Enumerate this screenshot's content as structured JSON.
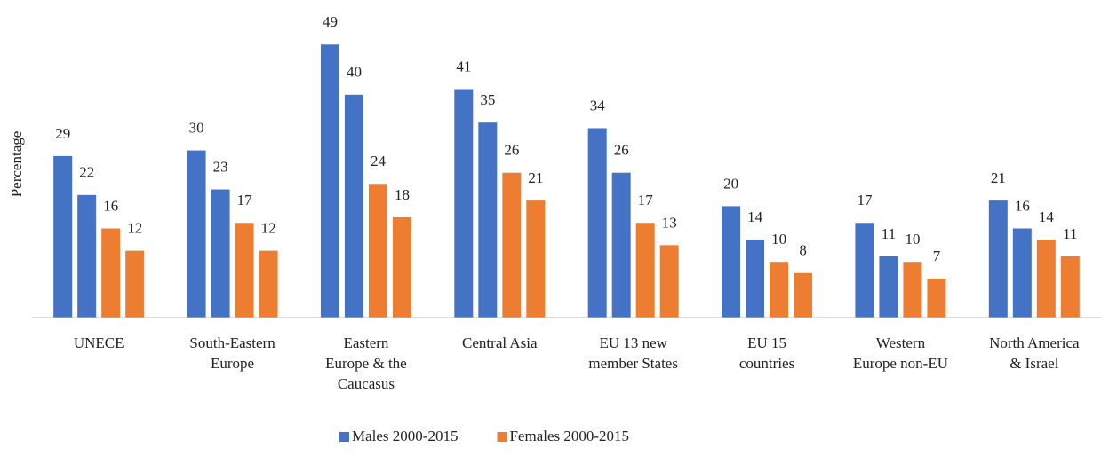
{
  "chart_data": {
    "type": "bar",
    "y_label": "Percentage",
    "categories": [
      [
        "UNECE"
      ],
      [
        "South-Eastern",
        "Europe"
      ],
      [
        "Eastern",
        "Europe & the",
        "Caucasus"
      ],
      [
        "Central Asia"
      ],
      [
        "EU 13 new",
        "member States"
      ],
      [
        "EU 15",
        "countries"
      ],
      [
        "Western",
        "Europe non-EU"
      ],
      [
        "North America",
        "& Israel"
      ]
    ],
    "series": [
      {
        "name": "Males 2000-2015",
        "color": "#4472c4",
        "values": [
          [
            29,
            22
          ],
          [
            30,
            23
          ],
          [
            49,
            40
          ],
          [
            41,
            35
          ],
          [
            34,
            26
          ],
          [
            20,
            14
          ],
          [
            17,
            11
          ],
          [
            21,
            16
          ]
        ]
      },
      {
        "name": "Females 2000-2015",
        "color": "#ed7d31",
        "values": [
          [
            16,
            12
          ],
          [
            17,
            12
          ],
          [
            24,
            18
          ],
          [
            26,
            21
          ],
          [
            17,
            13
          ],
          [
            10,
            8
          ],
          [
            10,
            7
          ],
          [
            14,
            11
          ]
        ]
      }
    ],
    "ylim": [
      0,
      50
    ],
    "legend": "bottom"
  }
}
